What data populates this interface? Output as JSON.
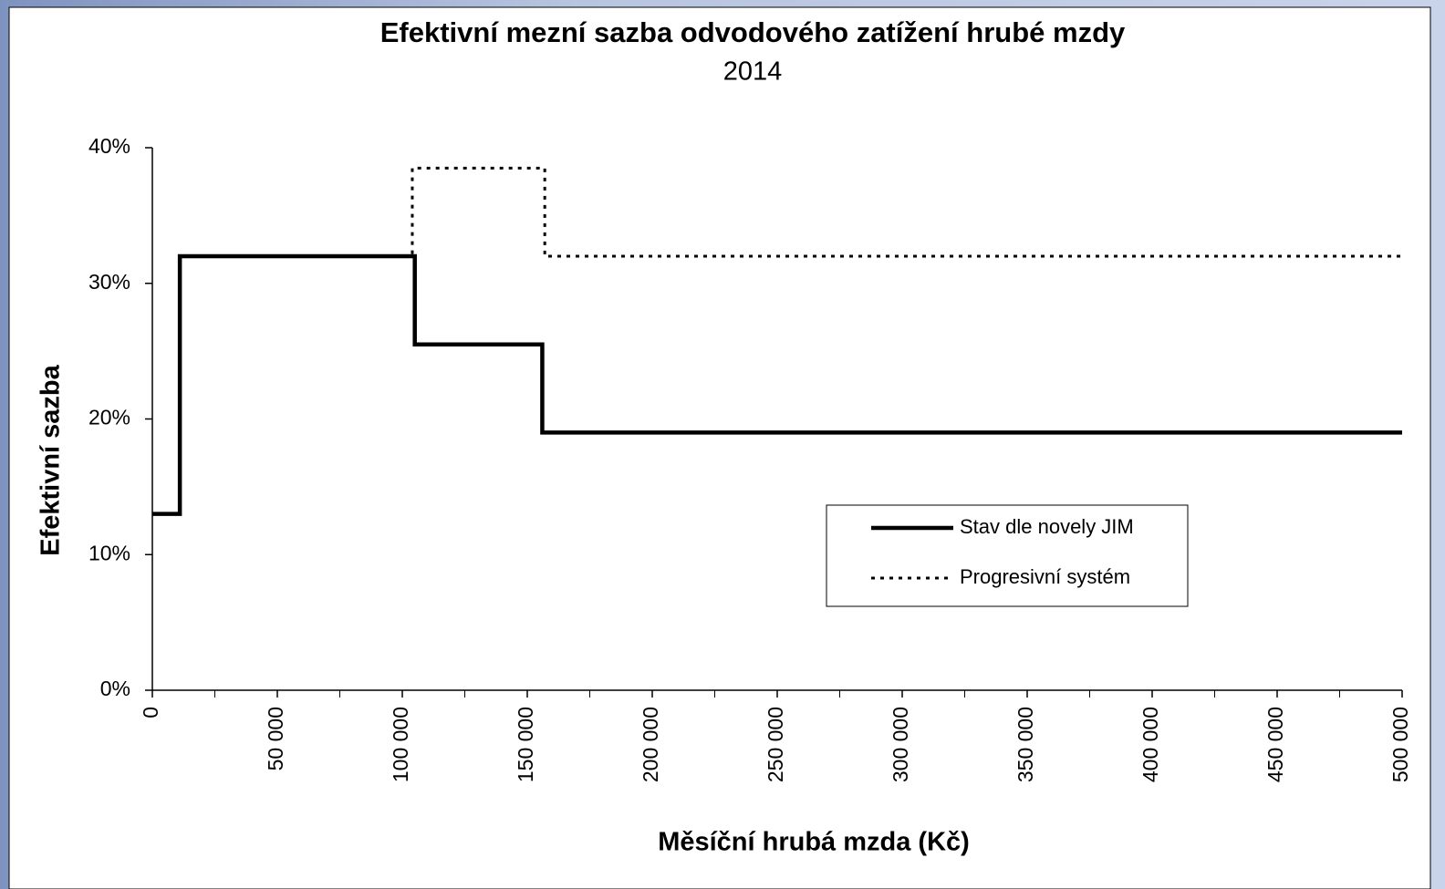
{
  "chart_data": {
    "type": "line",
    "title": "Efektivní mezní sazba odvodového zatížení hrubé mzdy",
    "subtitle": "2014",
    "x_label": "Měsíční hrubá mzda (Kč)",
    "y_label": "Efektivní sazba",
    "xlim": [
      0,
      500000
    ],
    "ylim": [
      0,
      40
    ],
    "xticks": [
      0,
      {
        "value": 50000,
        "label": "50 000"
      },
      {
        "value": 100000,
        "label": "100 000"
      },
      {
        "value": 150000,
        "label": "150 000"
      },
      {
        "value": 200000,
        "label": "200 000"
      },
      {
        "value": 250000,
        "label": "250 000"
      },
      {
        "value": 300000,
        "label": "300 000"
      },
      {
        "value": 350000,
        "label": "350 000"
      },
      {
        "value": 400000,
        "label": "400 000"
      },
      {
        "value": 450000,
        "label": "450 000"
      },
      {
        "value": 500000,
        "label": "500 000"
      }
    ],
    "xminorticks": [
      25000,
      75000,
      125000,
      175000,
      225000,
      275000,
      325000,
      375000,
      425000,
      475000
    ],
    "yticks": [
      {
        "value": 0,
        "label": "0%"
      },
      {
        "value": 10,
        "label": "10%"
      },
      {
        "value": 20,
        "label": "20%"
      },
      {
        "value": 30,
        "label": "30%"
      },
      {
        "value": 40,
        "label": "40%"
      }
    ],
    "grid": false,
    "legend": "right",
    "series": [
      {
        "name": "Stav dle novely JIM",
        "color": "#000000",
        "style": "solid",
        "x": [
          0,
          11000,
          11000,
          105000,
          105000,
          156000,
          156000,
          500000
        ],
        "values": [
          13,
          13,
          32,
          32,
          25.5,
          25.5,
          19,
          19
        ]
      },
      {
        "name": "Progresivní systém",
        "color": "#000000",
        "style": "dotted",
        "x": [
          0,
          11000,
          11000,
          104000,
          104000,
          157000,
          157000,
          500000
        ],
        "values": [
          13,
          13,
          32,
          32,
          38.5,
          38.5,
          32,
          32
        ]
      }
    ]
  }
}
